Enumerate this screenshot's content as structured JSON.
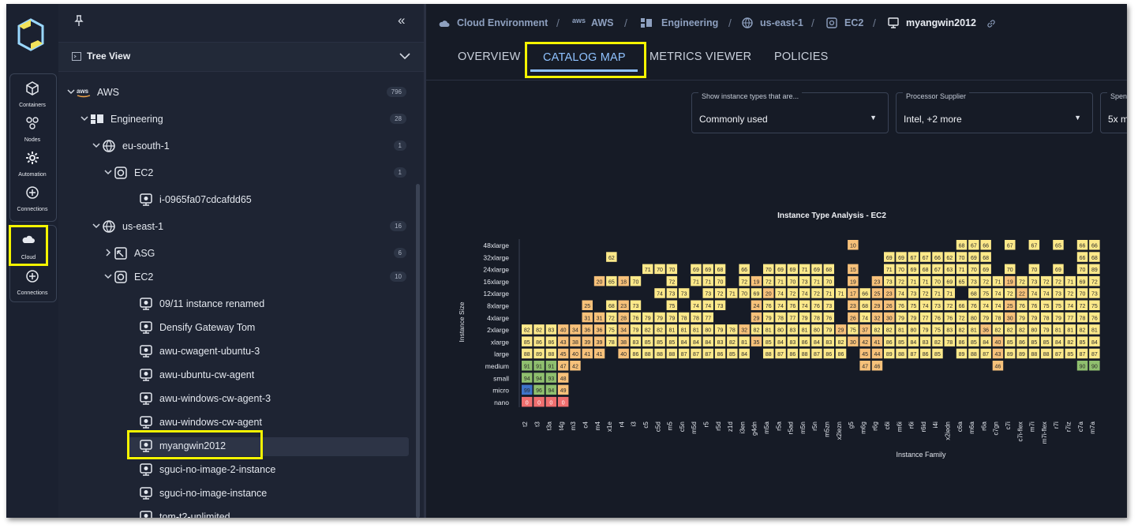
{
  "rail": {
    "items": [
      {
        "label": "Containers",
        "icon": "containers-icon"
      },
      {
        "label": "Nodes",
        "icon": "nodes-icon"
      },
      {
        "label": "Automation",
        "icon": "gear-icon"
      },
      {
        "label": "Connections",
        "icon": "plus-circle-icon"
      },
      {
        "label": "Cloud",
        "icon": "cloud-icon"
      },
      {
        "label": "Connections",
        "icon": "plus-circle-icon"
      }
    ]
  },
  "tree": {
    "header": "Tree View",
    "rows": [
      {
        "label": "AWS",
        "count": "796",
        "icon": "aws-icon"
      },
      {
        "label": "Engineering",
        "count": "28",
        "icon": "grid-icon"
      },
      {
        "label": "eu-south-1",
        "count": "1",
        "icon": "globe-icon"
      },
      {
        "label": "EC2",
        "count": "1",
        "icon": "chip-icon"
      },
      {
        "label": "i-0965fa07cdcafdd65",
        "count": "",
        "icon": "monitor-icon"
      },
      {
        "label": "us-east-1",
        "count": "16",
        "icon": "globe-icon"
      },
      {
        "label": "ASG",
        "count": "6",
        "icon": "scale-icon"
      },
      {
        "label": "EC2",
        "count": "10",
        "icon": "chip-icon"
      },
      {
        "label": "09/11 instance renamed",
        "count": "",
        "icon": "monitor-icon"
      },
      {
        "label": "Densify Gateway Tom",
        "count": "",
        "icon": "monitor-icon"
      },
      {
        "label": "awu-cwagent-ubuntu-3",
        "count": "",
        "icon": "monitor-icon"
      },
      {
        "label": "awu-ubuntu-cw-agent",
        "count": "",
        "icon": "monitor-icon"
      },
      {
        "label": "awu-windows-cw-agent-3",
        "count": "",
        "icon": "monitor-icon"
      },
      {
        "label": "awu-windows-cw-agent",
        "count": "",
        "icon": "monitor-icon"
      },
      {
        "label": "myangwin2012",
        "count": "",
        "icon": "monitor-icon"
      },
      {
        "label": "sguci-no-image-2-instance",
        "count": "",
        "icon": "monitor-icon"
      },
      {
        "label": "sguci-no-image-instance",
        "count": "",
        "icon": "monitor-icon"
      },
      {
        "label": "tom-t2-unlimited",
        "count": "",
        "icon": "monitor-icon"
      }
    ]
  },
  "breadcrumb": [
    "Cloud Environment",
    "AWS",
    "Engineering",
    "us-east-1",
    "EC2",
    "myangwin2012"
  ],
  "tabs": [
    "OVERVIEW",
    "CATALOG MAP",
    "METRICS VIEWER",
    "POLICIES"
  ],
  "filters": [
    {
      "label": "Show instance types that are...",
      "value": "Commonly used"
    },
    {
      "label": "Processor Supplier",
      "value": "Intel, +2 more"
    },
    {
      "label": "Spend",
      "value": "5x m"
    }
  ],
  "colors": {
    "accent": "#8fc2ff",
    "highlight": "#f4f400",
    "cell_yellow": "#fde98a",
    "cell_orange": "#f7c17a",
    "cell_green": "#8fbf6e",
    "cell_red": "#ef6f6f"
  },
  "chart_data": {
    "type": "heatmap",
    "title": "Instance Type Analysis - EC2",
    "xlabel": "Instance Family",
    "ylabel": "Instance Size",
    "y_categories": [
      "48xlarge",
      "32xlarge",
      "24xlarge",
      "16xlarge",
      "12xlarge",
      "8xlarge",
      "4xlarge",
      "2xlarge",
      "xlarge",
      "large",
      "medium",
      "small",
      "micro",
      "nano"
    ],
    "x_categories": [
      "t2",
      "t3",
      "t3a",
      "t4g",
      "m3",
      "c4",
      "m4",
      "x1e",
      "r4",
      "i3",
      "c5",
      "c5d",
      "m5",
      "c5n",
      "m5d",
      "r5",
      "r5d",
      "z1d",
      "i3en",
      "g4dn",
      "m5a",
      "r5a",
      "r5ad",
      "m5n",
      "r5n",
      "m5zn",
      "x2iezn",
      "g5",
      "m6g",
      "r6g",
      "c6i",
      "m6i",
      "r6i",
      "r6id",
      "i4i",
      "x2iedn",
      "c6a",
      "m6a",
      "r6a",
      "c7gn",
      "c7i",
      "c7i-flex",
      "m7i",
      "m7i-flex",
      "r7i",
      "r7iz",
      "c7a",
      "m7a"
    ],
    "rows": {
      "48xlarge": [
        "",
        "",
        "",
        "",
        "",
        "",
        "",
        "",
        "",
        "",
        "",
        "",
        "",
        "",
        "",
        "",
        "",
        "",
        "",
        "",
        "",
        "",
        "",
        "",
        "",
        "",
        "",
        "10",
        "",
        "",
        "",
        "",
        "",
        "",
        "",
        "",
        "68",
        "67",
        "66",
        "",
        "67",
        "",
        "67",
        "",
        "65",
        "",
        "66",
        "66"
      ],
      "32xlarge": [
        "",
        "",
        "",
        "",
        "",
        "",
        "",
        "62",
        "",
        "",
        "",
        "",
        "",
        "",
        "",
        "",
        "",
        "",
        "",
        "",
        "",
        "",
        "",
        "",
        "",
        "",
        "",
        "",
        "",
        "",
        "69",
        "69",
        "67",
        "67",
        "66",
        "62",
        "70",
        "69",
        "68",
        "",
        "",
        "",
        "",
        "",
        "",
        "",
        "66",
        "68"
      ],
      "24xlarge": [
        "",
        "",
        "",
        "",
        "",
        "",
        "",
        "",
        "",
        "",
        "71",
        "70",
        "70",
        "",
        "69",
        "69",
        "68",
        "",
        "66",
        "",
        "70",
        "69",
        "69",
        "71",
        "69",
        "68",
        "",
        "15",
        "",
        "",
        "71",
        "70",
        "69",
        "68",
        "67",
        "63",
        "71",
        "70",
        "69",
        "",
        "70",
        "",
        "70",
        "",
        "69",
        "",
        "70",
        "89"
      ],
      "16xlarge": [
        "",
        "",
        "",
        "",
        "",
        "",
        "20",
        "65",
        "18",
        "70",
        "",
        "",
        "72",
        "",
        "71",
        "71",
        "70",
        "",
        "72",
        "19",
        "72",
        "71",
        "70",
        "73",
        "71",
        "70",
        "",
        "19",
        "",
        "23",
        "73",
        "72",
        "71",
        "71",
        "70",
        "69",
        "65",
        "73",
        "72",
        "71",
        "19",
        "72",
        "73",
        "72",
        "72",
        "71",
        "69",
        "72"
      ],
      "12xlarge": [
        "",
        "",
        "",
        "",
        "",
        "",
        "",
        "",
        "",
        "",
        "",
        "74",
        "73",
        "73",
        "",
        "73",
        "72",
        "71",
        "70",
        "69",
        "20",
        "74",
        "72",
        "74",
        "72",
        "71",
        "71",
        "17",
        "66",
        "25",
        "23",
        "74",
        "73",
        "72",
        "71",
        "71",
        "",
        "68",
        "75",
        "74",
        "72",
        "22",
        "74",
        "74",
        "73",
        "72",
        "70",
        "73"
      ],
      "8xlarge": [
        "",
        "",
        "",
        "",
        "",
        "25",
        "",
        "68",
        "23",
        "73",
        "",
        "",
        "75",
        "",
        "74",
        "74",
        "73",
        "",
        "",
        "24",
        "76",
        "74",
        "76",
        "74",
        "76",
        "73",
        "",
        "23",
        "68",
        "29",
        "26",
        "76",
        "75",
        "74",
        "73",
        "72",
        "66",
        "76",
        "74",
        "74",
        "25",
        "76",
        "76",
        "75",
        "75",
        "74",
        "72",
        "75"
      ],
      "4xlarge": [
        "",
        "",
        "",
        "",
        "",
        "31",
        "31",
        "72",
        "28",
        "76",
        "79",
        "79",
        "79",
        "78",
        "78",
        "77",
        "",
        "",
        "",
        "29",
        "79",
        "78",
        "77",
        "79",
        "78",
        "76",
        "",
        "26",
        "74",
        "32",
        "30",
        "79",
        "79",
        "77",
        "76",
        "76",
        "72",
        "80",
        "79",
        "78",
        "30",
        "79",
        "79",
        "78",
        "79",
        "77",
        "78",
        "76"
      ],
      "2xlarge": [
        "82",
        "82",
        "83",
        "40",
        "34",
        "36",
        "36",
        "75",
        "34",
        "79",
        "82",
        "82",
        "81",
        "81",
        "81",
        "80",
        "79",
        "78",
        "32",
        "82",
        "81",
        "80",
        "83",
        "81",
        "80",
        "79",
        "29",
        "75",
        "37",
        "82",
        "82",
        "81",
        "80",
        "79",
        "75",
        "83",
        "82",
        "81",
        "36",
        "82",
        "82",
        "82",
        "80",
        "79",
        "81",
        "81",
        "82",
        "81"
      ],
      "xlarge": [
        "85",
        "86",
        "86",
        "43",
        "38",
        "39",
        "39",
        "78",
        "38",
        "83",
        "85",
        "85",
        "85",
        "84",
        "84",
        "84",
        "83",
        "82",
        "81",
        "35",
        "85",
        "84",
        "83",
        "86",
        "84",
        "83",
        "82",
        "30",
        "42",
        "41",
        "86",
        "85",
        "84",
        "83",
        "82",
        "78",
        "86",
        "85",
        "84",
        "40",
        "85",
        "86",
        "85",
        "85",
        "84",
        "82",
        "85",
        "84"
      ],
      "large": [
        "88",
        "89",
        "88",
        "45",
        "40",
        "41",
        "41",
        "",
        "40",
        "86",
        "88",
        "88",
        "88",
        "87",
        "87",
        "87",
        "86",
        "85",
        "84",
        "",
        "88",
        "87",
        "86",
        "88",
        "87",
        "86",
        "86",
        "",
        "45",
        "44",
        "89",
        "88",
        "87",
        "86",
        "85",
        "",
        "89",
        "88",
        "87",
        "43",
        "89",
        "89",
        "88",
        "88",
        "87",
        "85",
        "87",
        "87"
      ],
      "medium": [
        "91",
        "91",
        "91",
        "47",
        "42",
        "",
        "",
        "",
        "",
        "",
        "",
        "",
        "",
        "",
        "",
        "",
        "",
        "",
        "",
        "",
        "",
        "",
        "",
        "",
        "",
        "",
        "",
        "",
        "47",
        "46",
        "",
        "",
        "",
        "",
        "",
        "",
        "",
        "",
        "",
        "46",
        "",
        "",
        "",
        "",
        "",
        "",
        "90",
        "90"
      ],
      "small": [
        "94",
        "94",
        "93",
        "48",
        "",
        "",
        "",
        "",
        "",
        "",
        "",
        "",
        "",
        "",
        "",
        "",
        "",
        "",
        "",
        "",
        "",
        "",
        "",
        "",
        "",
        "",
        "",
        "",
        "",
        "",
        "",
        "",
        "",
        "",
        "",
        "",
        "",
        "",
        "",
        "",
        "",
        "",
        "",
        "",
        "",
        "",
        "",
        ""
      ],
      "micro": [
        "99",
        "96",
        "94",
        "49",
        "",
        "",
        "",
        "",
        "",
        "",
        "",
        "",
        "",
        "",
        "",
        "",
        "",
        "",
        "",
        "",
        "",
        "",
        "",
        "",
        "",
        "",
        "",
        "",
        "",
        "",
        "",
        "",
        "",
        "",
        "",
        "",
        "",
        "",
        "",
        "",
        "",
        "",
        "",
        "",
        "",
        "",
        "",
        ""
      ],
      "nano": [
        "0",
        "0",
        "0",
        "0",
        "",
        "",
        "",
        "",
        "",
        "",
        "",
        "",
        "",
        "",
        "",
        "",
        "",
        "",
        "",
        "",
        "",
        "",
        "",
        "",
        "",
        "",
        "",
        "",
        "",
        "",
        "",
        "",
        "",
        "",
        "",
        "",
        "",
        "",
        "",
        "",
        "",
        "",
        "",
        "",
        "",
        "",
        "",
        ""
      ]
    }
  }
}
